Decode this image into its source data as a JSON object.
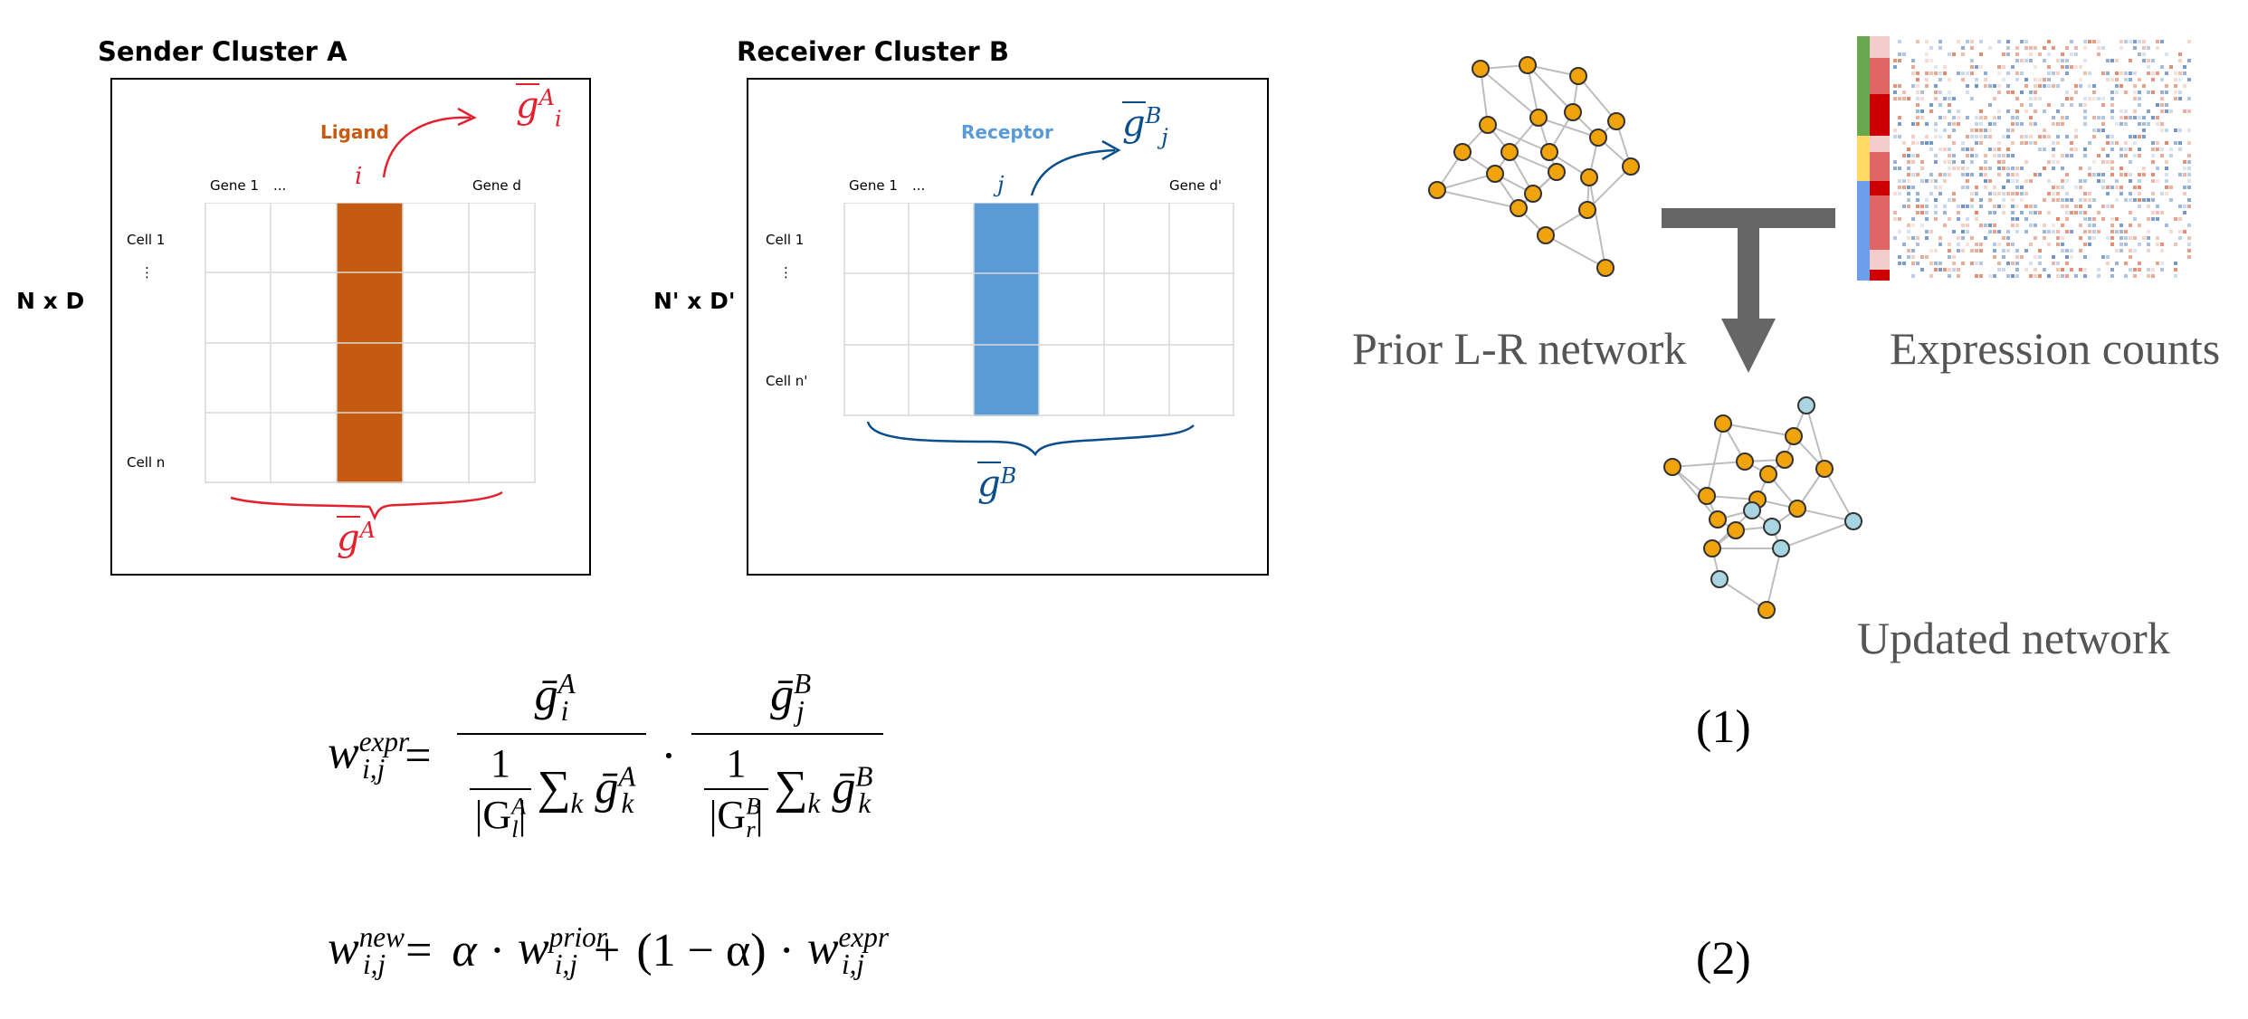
{
  "panelA": {
    "title": "Sender Cluster A",
    "dims": "N x D",
    "col_label": "Ligand",
    "gene_first": "Gene 1",
    "gene_dots": "...",
    "gene_last": "Gene d",
    "cell_first": "Cell 1",
    "cell_dots": "⋮",
    "cell_last": "Cell n",
    "col_index": "i",
    "hand_top": "g",
    "hand_top_sup": "A",
    "hand_top_sub": "i",
    "hand_bottom": "g",
    "hand_bottom_sup": "A",
    "bar_color": "#c55a11"
  },
  "panelB": {
    "title": "Receiver Cluster B",
    "dims": "N' x D'",
    "col_label": "Receptor",
    "gene_first": "Gene 1",
    "gene_dots": "...",
    "gene_last": "Gene d'",
    "cell_first": "Cell 1",
    "cell_dots": "⋮",
    "cell_last": "Cell n'",
    "col_index": "j",
    "hand_top": "g",
    "hand_top_sup": "B",
    "hand_top_sub": "j",
    "hand_bottom": "g",
    "hand_bottom_sup": "B",
    "bar_color": "#5b9bd5"
  },
  "network": {
    "prior_label": "Prior L-R network",
    "expr_label": "Expression counts",
    "updated_label": "Updated network",
    "node_orange": "#f0a30a",
    "node_blue": "#a8d5e2",
    "edge_color": "#bdbdbd",
    "arrow_color": "#666666"
  },
  "equations": {
    "eq1_number": "(1)",
    "eq2_number": "(2)",
    "eq1_lhs": "w",
    "eq1_lhs_sup": "expr",
    "eq1_lhs_sub": "i,j",
    "eq1_num_a": "ḡ",
    "eq1_num_a_sup": "A",
    "eq1_num_a_sub": "i",
    "eq1_num_b": "ḡ",
    "eq1_num_b_sup": "B",
    "eq1_num_b_sub": "j",
    "eq1_den_a_set": "|G",
    "eq1_den_a_set_sup": "A",
    "eq1_den_a_set_sub": "l",
    "eq1_den_b_set": "|G",
    "eq1_den_b_set_sup": "B",
    "eq1_den_b_set_sub": "r",
    "eq2_lhs": "w",
    "eq2_lhs_sup": "new",
    "eq2_lhs_sub": "i,j",
    "eq2_alpha": "α",
    "eq2_prior": "w",
    "eq2_prior_sup": "prior",
    "eq2_prior_sub": "i,j",
    "eq2_one_minus": "(1 − α)",
    "eq2_expr": "w",
    "eq2_expr_sup": "expr",
    "eq2_expr_sub": "i,j"
  }
}
